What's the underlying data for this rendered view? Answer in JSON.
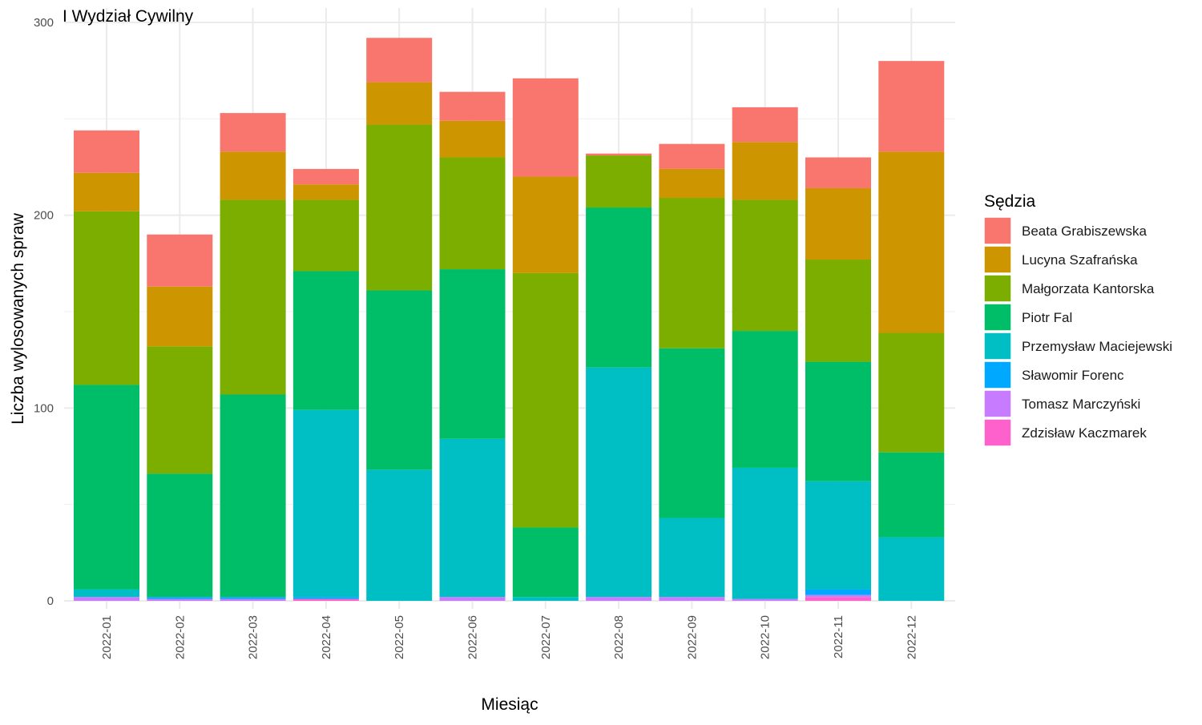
{
  "chart_data": {
    "type": "bar",
    "stacked": true,
    "title": "I Wydział Cywilny",
    "xlabel": "Miesiąc",
    "ylabel": "Liczba wylosowanych spraw",
    "ylim": [
      0,
      300
    ],
    "yticks": [
      0,
      100,
      200,
      300
    ],
    "grid": true,
    "legend_title": "Sędzia",
    "legend_position": "right",
    "categories": [
      "2022-01",
      "2022-02",
      "2022-03",
      "2022-04",
      "2022-05",
      "2022-06",
      "2022-07",
      "2022-08",
      "2022-09",
      "2022-10",
      "2022-11",
      "2022-12"
    ],
    "series": [
      {
        "name": "Zdzisław Kaczmarek",
        "color": "#FF61CC",
        "values": [
          0,
          0,
          0,
          1,
          0,
          0,
          0,
          0,
          0,
          0,
          2,
          0
        ]
      },
      {
        "name": "Tomasz Marczyński",
        "color": "#C77CFF",
        "values": [
          2,
          1,
          1,
          0,
          0,
          2,
          0,
          2,
          2,
          1,
          1,
          0
        ]
      },
      {
        "name": "Sławomir Forenc",
        "color": "#00A9FF",
        "values": [
          0,
          1,
          1,
          1,
          0,
          0,
          0,
          0,
          0,
          0,
          3,
          0
        ]
      },
      {
        "name": "Przemysław Maciejewski",
        "color": "#00BFC4",
        "values": [
          4,
          0,
          0,
          97,
          68,
          82,
          2,
          119,
          41,
          68,
          56,
          33
        ]
      },
      {
        "name": "Piotr Fal",
        "color": "#00BE67",
        "values": [
          106,
          64,
          105,
          72,
          93,
          88,
          36,
          83,
          88,
          71,
          62,
          44
        ]
      },
      {
        "name": "Małgorzata Kantorska",
        "color": "#7CAE00",
        "values": [
          90,
          66,
          101,
          37,
          86,
          58,
          132,
          27,
          78,
          68,
          53,
          62
        ]
      },
      {
        "name": "Lucyna Szafrańska",
        "color": "#CD9600",
        "values": [
          20,
          31,
          25,
          8,
          22,
          19,
          50,
          0,
          15,
          30,
          37,
          94
        ]
      },
      {
        "name": "Beata Grabiszewska",
        "color": "#F8766D",
        "values": [
          22,
          27,
          20,
          8,
          23,
          15,
          51,
          1,
          13,
          18,
          16,
          47
        ]
      }
    ],
    "legend_order": [
      "Beata Grabiszewska",
      "Lucyna Szafrańska",
      "Małgorzata Kantorska",
      "Piotr Fal",
      "Przemysław Maciejewski",
      "Sławomir Forenc",
      "Tomasz Marczyński",
      "Zdzisław Kaczmarek"
    ]
  }
}
